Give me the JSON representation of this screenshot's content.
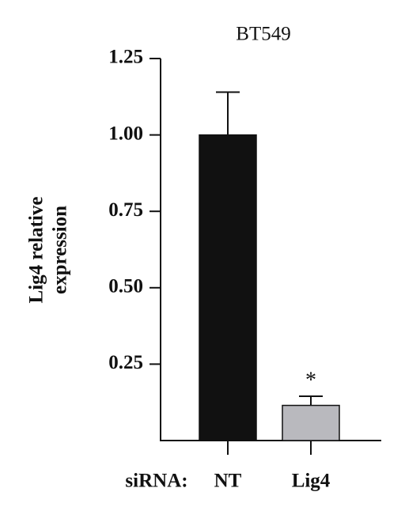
{
  "chart_data": {
    "type": "bar",
    "title": "BT549",
    "ylabel": [
      "Lig4 relative",
      "expression"
    ],
    "xlabel": "siRNA:",
    "categories": [
      "NT",
      "Lig4"
    ],
    "values": [
      1.0,
      0.115
    ],
    "errors": [
      0.14,
      0.03
    ],
    "colors": [
      "#111111",
      "#b9b9be"
    ],
    "annotation": "*",
    "ylim": [
      0,
      1.25
    ],
    "yticks": [
      {
        "value": 0.25,
        "label": "0.25"
      },
      {
        "value": 0.5,
        "label": "0.50"
      },
      {
        "value": 0.75,
        "label": "0.75"
      },
      {
        "value": 1,
        "label": "1.00"
      },
      {
        "value": 1.25,
        "label": "1.25"
      }
    ]
  }
}
